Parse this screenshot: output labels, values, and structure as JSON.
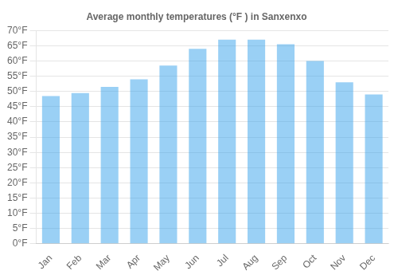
{
  "chart_data": {
    "type": "bar",
    "title": "Average monthly temperatures (°F ) in Sanxenxo",
    "categories": [
      "Jan",
      "Feb",
      "Mar",
      "Apr",
      "May",
      "Jun",
      "Jul",
      "Aug",
      "Sep",
      "Oct",
      "Nov",
      "Dec"
    ],
    "values": [
      48.5,
      49.5,
      51.5,
      54.0,
      58.5,
      64.0,
      67.0,
      67.0,
      65.5,
      60.0,
      53.0,
      49.0
    ],
    "ylim": [
      0,
      70
    ],
    "yticks": [
      {
        "value": 0,
        "label": "0°F"
      },
      {
        "value": 5,
        "label": "5°F"
      },
      {
        "value": 10,
        "label": "10°F"
      },
      {
        "value": 15,
        "label": "15°F"
      },
      {
        "value": 20,
        "label": "20°F"
      },
      {
        "value": 25,
        "label": "25°F"
      },
      {
        "value": 30,
        "label": "30°F"
      },
      {
        "value": 35,
        "label": "35°F"
      },
      {
        "value": 40,
        "label": "40°F"
      },
      {
        "value": 45,
        "label": "45°F"
      },
      {
        "value": 50,
        "label": "50°F"
      },
      {
        "value": 55,
        "label": "55°F"
      },
      {
        "value": 60,
        "label": "60°F"
      },
      {
        "value": 65,
        "label": "65°F"
      },
      {
        "value": 70,
        "label": "70°F"
      }
    ],
    "grid": true
  }
}
